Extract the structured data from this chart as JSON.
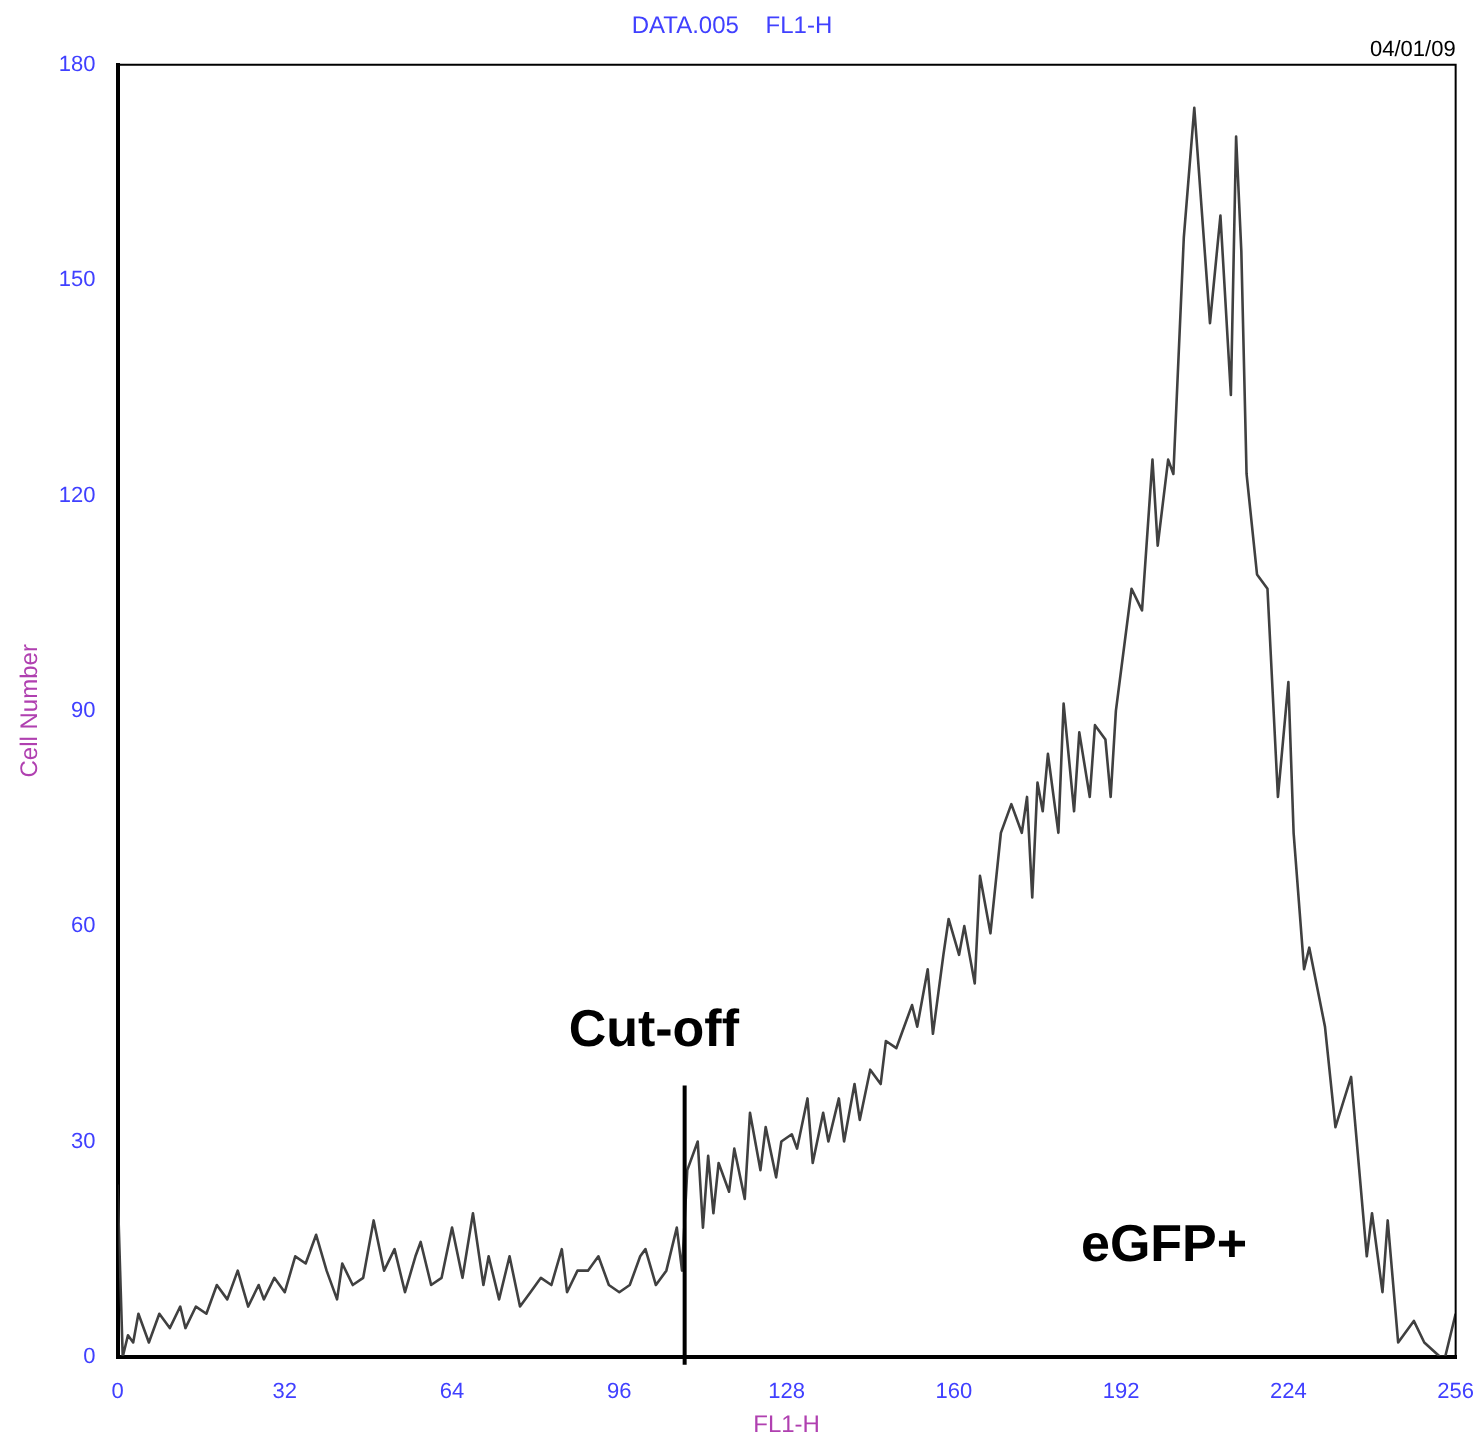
{
  "chart_data": {
    "type": "line",
    "title": "DATA.005    FL1-H",
    "xlabel": "FL1-H",
    "ylabel": "Cell Number",
    "annotations": [
      "04/01/09",
      "eGFP+"
    ],
    "ref_lines": [
      {
        "axis": "x",
        "value": 108.5,
        "label": "Cut-off",
        "color": "#000000"
      }
    ],
    "xlim": [
      0,
      256
    ],
    "xticks": [
      0,
      32,
      64,
      96,
      128,
      160,
      192,
      224,
      256
    ],
    "ylim": [
      0,
      180
    ],
    "yticks": [
      0,
      30,
      60,
      90,
      120,
      150,
      180
    ],
    "grid": false,
    "legend": false,
    "marker": "none",
    "line_style": "solid",
    "series": [
      {
        "color": "#404040",
        "x": [
          0,
          1,
          2,
          3,
          4,
          6,
          8,
          10,
          12,
          13,
          15,
          17,
          19,
          21,
          23,
          25,
          27,
          28,
          30,
          32,
          34,
          36,
          38,
          40,
          42,
          43,
          45,
          47,
          49,
          51,
          53,
          55,
          57,
          58,
          60,
          62,
          64,
          66,
          68,
          70,
          71,
          73,
          75,
          77,
          79,
          81,
          83,
          85,
          86,
          88,
          90,
          92,
          94,
          96,
          98,
          100,
          101,
          103,
          105,
          107,
          108,
          109,
          111,
          112,
          113,
          114,
          115,
          117,
          118,
          120,
          121,
          123,
          124,
          126,
          127,
          129,
          130,
          132,
          133,
          135,
          136,
          138,
          139,
          141,
          142,
          144,
          146,
          147,
          149,
          150,
          152,
          153,
          155,
          156,
          158,
          159,
          161,
          162,
          164,
          165,
          167,
          169,
          171,
          173,
          174,
          175,
          176,
          177,
          178,
          180,
          181,
          183,
          184,
          186,
          187,
          189,
          190,
          191,
          194,
          196,
          198,
          199,
          201,
          202,
          204,
          206,
          209,
          211,
          213,
          214,
          215,
          216,
          218,
          220,
          222,
          224,
          225,
          227,
          228,
          231,
          233,
          236,
          239,
          240,
          242,
          243,
          245,
          248,
          250,
          253,
          254,
          256
        ],
        "values": [
          24,
          0,
          3,
          2,
          6,
          2,
          6,
          4,
          7,
          4,
          7,
          6,
          10,
          8,
          12,
          7,
          10,
          8,
          11,
          9,
          14,
          13,
          17,
          12,
          8,
          13,
          10,
          11,
          19,
          12,
          15,
          9,
          14,
          16,
          10,
          11,
          18,
          11,
          20,
          10,
          14,
          8,
          14,
          7,
          9,
          11,
          10,
          15,
          9,
          12,
          12,
          14,
          10,
          9,
          10,
          14,
          15,
          10,
          12,
          18,
          12,
          26,
          30,
          18,
          28,
          20,
          27,
          23,
          29,
          22,
          34,
          26,
          32,
          25,
          30,
          31,
          29,
          36,
          27,
          34,
          30,
          36,
          30,
          38,
          33,
          40,
          38,
          44,
          43,
          45,
          49,
          46,
          54,
          45,
          56,
          61,
          56,
          60,
          52,
          67,
          59,
          73,
          77,
          73,
          78,
          64,
          80,
          76,
          84,
          73,
          91,
          76,
          87,
          78,
          88,
          86,
          78,
          90,
          107,
          104,
          125,
          113,
          125,
          123,
          156,
          174,
          144,
          159,
          134,
          170,
          154,
          123,
          109,
          107,
          78,
          94,
          73,
          54,
          57,
          46,
          32,
          39,
          14,
          20,
          9,
          19,
          2,
          5,
          2,
          0,
          0,
          6
        ]
      }
    ]
  }
}
